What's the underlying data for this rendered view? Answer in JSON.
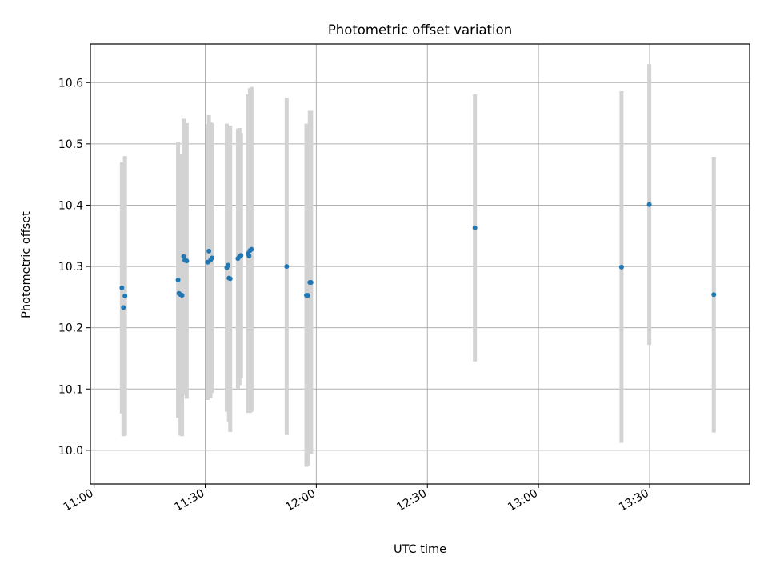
{
  "chart_data": {
    "type": "scatter",
    "title": "Photometric offset variation",
    "xlabel": "UTC time",
    "ylabel": "Photometric offset",
    "x_ticks": [
      "11:00",
      "11:30",
      "12:00",
      "12:30",
      "13:00",
      "13:30"
    ],
    "y_ticks": [
      "10.0",
      "10.1",
      "10.2",
      "10.3",
      "10.4",
      "10.5",
      "10.6"
    ],
    "xlim": [
      "10:59",
      "13:57"
    ],
    "ylim": [
      9.945,
      10.663
    ],
    "grid": true,
    "colors": {
      "point": "#1f77b4",
      "errorbar": "#d3d3d3",
      "grid": "#b0b0b0"
    },
    "series": [
      {
        "points": [
          {
            "t": "11:07:30",
            "y": 10.265,
            "err": 0.205
          },
          {
            "t": "11:07:55",
            "y": 10.233,
            "err": 0.21
          },
          {
            "t": "11:08:20",
            "y": 10.252,
            "err": 0.228
          },
          {
            "t": "11:22:40",
            "y": 10.278,
            "err": 0.225
          },
          {
            "t": "11:22:55",
            "y": 10.256,
            "err": 0.2
          },
          {
            "t": "11:23:20",
            "y": 10.254,
            "err": 0.23
          },
          {
            "t": "11:23:45",
            "y": 10.253,
            "err": 0.23
          },
          {
            "t": "11:24:10",
            "y": 10.316,
            "err": 0.225
          },
          {
            "t": "11:24:30",
            "y": 10.31,
            "err": 0.22
          },
          {
            "t": "11:25:00",
            "y": 10.309,
            "err": 0.225
          },
          {
            "t": "11:30:40",
            "y": 10.307,
            "err": 0.225
          },
          {
            "t": "11:31:00",
            "y": 10.325,
            "err": 0.222
          },
          {
            "t": "11:31:25",
            "y": 10.31,
            "err": 0.225
          },
          {
            "t": "11:31:50",
            "y": 10.314,
            "err": 0.22
          },
          {
            "t": "11:35:50",
            "y": 10.298,
            "err": 0.235
          },
          {
            "t": "11:36:10",
            "y": 10.302,
            "err": 0.225
          },
          {
            "t": "11:36:25",
            "y": 10.281,
            "err": 0.235
          },
          {
            "t": "11:36:45",
            "y": 10.28,
            "err": 0.25
          },
          {
            "t": "11:38:50",
            "y": 10.313,
            "err": 0.212
          },
          {
            "t": "11:39:15",
            "y": 10.316,
            "err": 0.21
          },
          {
            "t": "11:39:40",
            "y": 10.318,
            "err": 0.2
          },
          {
            "t": "11:41:35",
            "y": 10.321,
            "err": 0.26
          },
          {
            "t": "11:41:50",
            "y": 10.317,
            "err": 0.255
          },
          {
            "t": "11:42:05",
            "y": 10.326,
            "err": 0.265
          },
          {
            "t": "11:42:30",
            "y": 10.328,
            "err": 0.265
          },
          {
            "t": "11:52:00",
            "y": 10.3,
            "err": 0.275
          },
          {
            "t": "11:57:20",
            "y": 10.253,
            "err": 0.28
          },
          {
            "t": "11:57:45",
            "y": 10.253,
            "err": 0.278
          },
          {
            "t": "11:58:15",
            "y": 10.274,
            "err": 0.28
          },
          {
            "t": "11:58:35",
            "y": 10.274,
            "err": 0.28
          },
          {
            "t": "12:42:50",
            "y": 10.363,
            "err": 0.218
          },
          {
            "t": "13:22:25",
            "y": 10.299,
            "err": 0.287
          },
          {
            "t": "13:29:55",
            "y": 10.401,
            "err": 0.229
          },
          {
            "t": "13:47:20",
            "y": 10.254,
            "err": 0.225
          }
        ]
      }
    ]
  }
}
